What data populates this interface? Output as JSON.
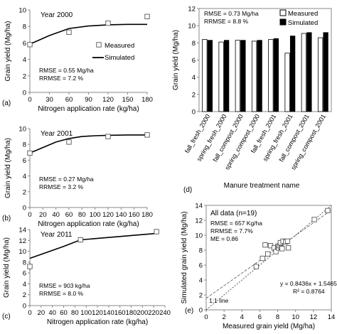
{
  "chart_data": [
    {
      "panel": "(a)",
      "type": "line",
      "annotation": "Year 2000",
      "xlabel": "Nitrogen application rate (kg/ha)",
      "ylabel": "Grain yield (Mg/ha)",
      "xlim": [
        0,
        180
      ],
      "ylim": [
        0,
        10
      ],
      "xticks": [
        0,
        30,
        60,
        90,
        120,
        150,
        180
      ],
      "yticks": [
        0,
        2,
        4,
        6,
        8,
        10
      ],
      "stats": [
        "RMSE = 0.55 Mg/ha",
        "RRMSE = 7.2 %"
      ],
      "legend": {
        "position": "right",
        "entries": [
          "Measured",
          "Simulated"
        ]
      },
      "series": [
        {
          "name": "Measured",
          "marker": "open-square",
          "x": [
            0,
            60,
            120,
            180
          ],
          "y": [
            5.8,
            7.3,
            8.4,
            9.2
          ]
        },
        {
          "name": "Simulated",
          "marker": "line",
          "x": [
            0,
            30,
            60,
            90,
            120,
            150,
            180
          ],
          "y": [
            5.85,
            6.9,
            7.75,
            8.05,
            8.2,
            8.25,
            8.25
          ]
        }
      ]
    },
    {
      "panel": "(b)",
      "type": "line",
      "annotation": "Year 2001",
      "xlabel": "Nitrogen application rate (kg/ha)",
      "ylabel": "Grain yield (Mg/ha)",
      "xlim": [
        0,
        180
      ],
      "ylim": [
        0,
        10
      ],
      "xticks": [
        0,
        20,
        40,
        60,
        80,
        100,
        120,
        140,
        160,
        180
      ],
      "yticks": [
        0,
        2,
        4,
        6,
        8,
        10
      ],
      "stats": [
        "RMSE = 0.27 Mg/ha",
        "RRMSE = 3.2 %"
      ],
      "series": [
        {
          "name": "Measured",
          "marker": "open-square",
          "x": [
            0,
            60,
            120,
            180
          ],
          "y": [
            6.9,
            8.3,
            9.0,
            9.2
          ]
        },
        {
          "name": "Simulated",
          "marker": "line",
          "x": [
            0,
            20,
            40,
            60,
            80,
            100,
            120,
            150,
            180
          ],
          "y": [
            6.9,
            7.6,
            8.3,
            8.75,
            9.0,
            9.1,
            9.15,
            9.2,
            9.2
          ]
        }
      ]
    },
    {
      "panel": "(c)",
      "type": "line",
      "annotation": "Year 2011",
      "xlabel": "Nitrogen application rate (kg/ha)",
      "ylabel": "Grain yield (Mg/ha)",
      "xlim": [
        0,
        240
      ],
      "ylim": [
        0,
        14
      ],
      "xticks": [
        0,
        20,
        40,
        60,
        80,
        100,
        120,
        140,
        160,
        180,
        200,
        220,
        240
      ],
      "yticks": [
        0,
        2,
        4,
        6,
        8,
        10,
        12,
        14
      ],
      "stats": [
        "RMSE = 903 kg/ha",
        "RRMSE = 8.0 %"
      ],
      "series": [
        {
          "name": "Measured",
          "marker": "open-square",
          "x": [
            0,
            90,
            225
          ],
          "y": [
            7.2,
            12.1,
            13.6
          ],
          "err": [
            0.8,
            0.5,
            0.3
          ]
        },
        {
          "name": "Simulated",
          "marker": "line",
          "x": [
            0,
            30,
            60,
            90,
            225
          ],
          "y": [
            8.7,
            9.8,
            10.9,
            12.1,
            13.3
          ]
        }
      ]
    },
    {
      "panel": "(d)",
      "type": "bar",
      "xlabel": "Manure treatment name",
      "ylabel": "Grain yield (Mg/ha)",
      "ylim": [
        0,
        12
      ],
      "yticks": [
        0,
        2,
        4,
        6,
        8,
        10,
        12
      ],
      "stats": [
        "RMSE = 0.73 Mg/ha",
        "RRMSE = 8.8 %"
      ],
      "legend": {
        "position": "top-right",
        "entries": [
          "Measured",
          "Simulated"
        ]
      },
      "categories": [
        "fall_fresh_2000",
        "spring_fresh_2000",
        "fall_compost_2000",
        "spring_compost_2000",
        "fall_fresh_2001",
        "spring_fresh_2001",
        "fall_compost_2001",
        "spring_compost_2001"
      ],
      "series": [
        {
          "name": "Measured",
          "color": "#ffffff",
          "values": [
            8.4,
            8.1,
            8.3,
            8.2,
            8.4,
            6.8,
            9.1,
            8.6
          ]
        },
        {
          "name": "Simulated",
          "color": "#000000",
          "values": [
            8.3,
            8.3,
            8.3,
            8.3,
            8.5,
            8.8,
            9.2,
            9.2
          ]
        }
      ]
    },
    {
      "panel": "(e)",
      "type": "scatter",
      "annotation": "All data (n=19)",
      "xlabel": "Measured grain yield (Mg/ha)",
      "ylabel": "Simulated grain yield (Mg/ha)",
      "xlim": [
        0,
        14
      ],
      "ylim": [
        0,
        14
      ],
      "xticks": [
        0,
        2,
        4,
        6,
        8,
        10,
        12,
        14
      ],
      "yticks": [
        0,
        2,
        4,
        6,
        8,
        10,
        12,
        14
      ],
      "stats": [
        "RMSE = 657 Kg/ha",
        "RRMSE = 7.7%",
        "ME = 0.86"
      ],
      "fit_text": [
        "y = 0.8436x + 1.5465",
        "R² = 0.8764"
      ],
      "fit": {
        "slope": 0.8436,
        "intercept": 1.5465
      },
      "one_to_one_label": "1:1 line",
      "series": [
        {
          "name": "",
          "marker": "open-square",
          "x": [
            5.6,
            6.3,
            6.6,
            6.9,
            7.2,
            7.6,
            7.8,
            8.0,
            8.1,
            8.2,
            8.3,
            8.4,
            8.5,
            8.6,
            8.9,
            9.1,
            9.2,
            12.1,
            13.6
          ],
          "y": [
            5.8,
            6.9,
            8.7,
            7.5,
            8.6,
            8.3,
            7.8,
            8.5,
            8.3,
            8.6,
            9.0,
            8.3,
            8.2,
            9.2,
            9.1,
            9.2,
            8.3,
            12.1,
            13.3
          ]
        }
      ]
    }
  ]
}
